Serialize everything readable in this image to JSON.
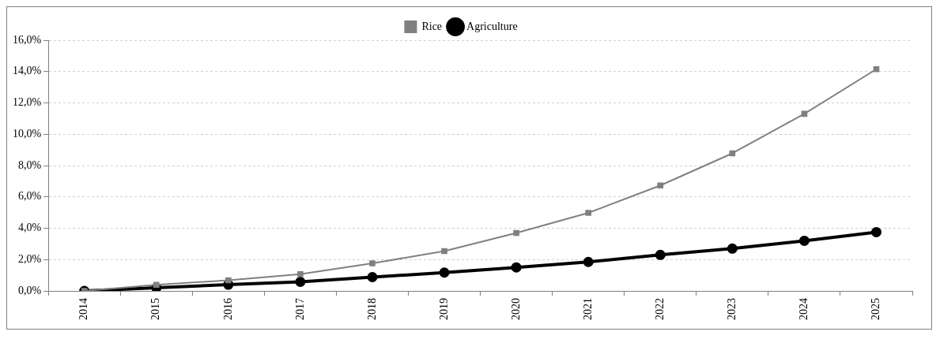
{
  "chart_data": {
    "type": "line",
    "categories": [
      "2014",
      "2015",
      "2016",
      "2017",
      "2018",
      "2019",
      "2020",
      "2021",
      "2022",
      "2023",
      "2024",
      "2025"
    ],
    "series": [
      {
        "name": "Agriculture",
        "color": "#000000",
        "marker": "circle",
        "values": [
          0,
          0.2,
          0.4,
          0.58,
          0.88,
          1.17,
          1.5,
          1.85,
          2.3,
          2.7,
          3.2,
          3.75
        ]
      },
      {
        "name": "Rice",
        "color": "#808080",
        "marker": "square",
        "values": [
          0,
          0.39,
          0.68,
          1.07,
          1.76,
          2.54,
          3.7,
          4.98,
          6.73,
          8.78,
          11.3,
          14.15
        ]
      }
    ],
    "ylim": [
      0,
      16
    ],
    "yticks": [
      {
        "value": 0,
        "label": "0,0%"
      },
      {
        "value": 2,
        "label": "2,0%"
      },
      {
        "value": 4,
        "label": "4,0%"
      },
      {
        "value": 6,
        "label": "6,0%"
      },
      {
        "value": 8,
        "label": "8,0%"
      },
      {
        "value": 10,
        "label": "10,0%"
      },
      {
        "value": 12,
        "label": "12,0%"
      },
      {
        "value": 14,
        "label": "14,0%"
      },
      {
        "value": 16,
        "label": "16,0%"
      }
    ],
    "grid": "y",
    "legend": "top"
  }
}
